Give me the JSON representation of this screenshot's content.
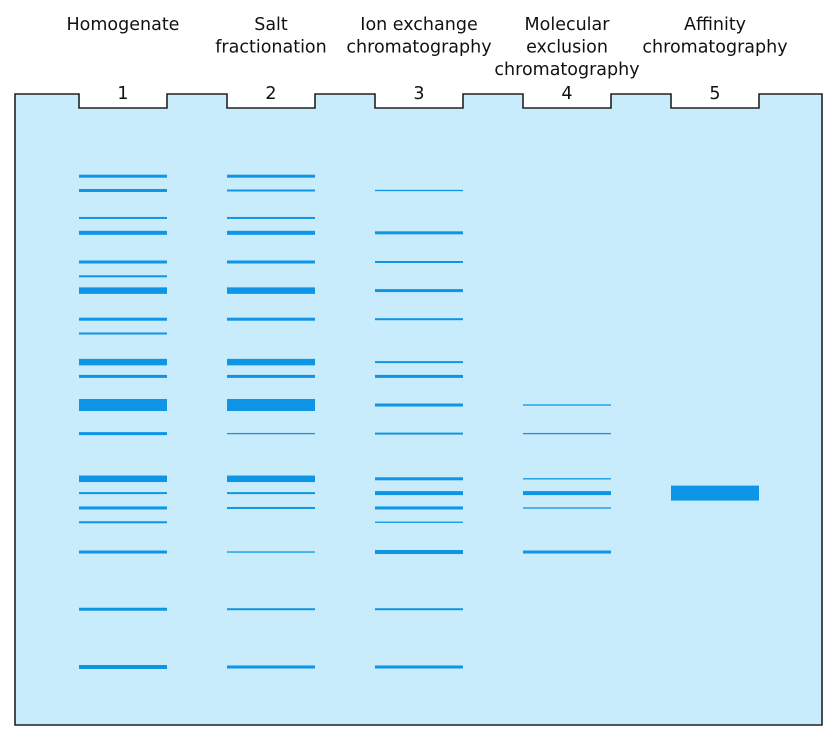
{
  "colors": {
    "gel": "#c8ecfb",
    "band": "#0f95e6",
    "outline": "#222222"
  },
  "lanes": [
    {
      "number": "1",
      "title_lines": [
        "Homogenate"
      ],
      "bands": [
        {
          "mobility": 0.072,
          "intensity": 2
        },
        {
          "mobility": 0.097,
          "intensity": 2
        },
        {
          "mobility": 0.145,
          "intensity": 1
        },
        {
          "mobility": 0.171,
          "intensity": 3
        },
        {
          "mobility": 0.222,
          "intensity": 2
        },
        {
          "mobility": 0.247,
          "intensity": 1
        },
        {
          "mobility": 0.272,
          "intensity": 4
        },
        {
          "mobility": 0.322,
          "intensity": 2
        },
        {
          "mobility": 0.347,
          "intensity": 1
        },
        {
          "mobility": 0.397,
          "intensity": 4
        },
        {
          "mobility": 0.422,
          "intensity": 2
        },
        {
          "mobility": 0.472,
          "intensity": 5
        },
        {
          "mobility": 0.522,
          "intensity": 2
        },
        {
          "mobility": 0.601,
          "intensity": 4
        },
        {
          "mobility": 0.626,
          "intensity": 1
        },
        {
          "mobility": 0.652,
          "intensity": 2
        },
        {
          "mobility": 0.677,
          "intensity": 1
        },
        {
          "mobility": 0.729,
          "intensity": 2
        },
        {
          "mobility": 0.829,
          "intensity": 2
        },
        {
          "mobility": 0.93,
          "intensity": 3
        }
      ]
    },
    {
      "number": "2",
      "title_lines": [
        "Salt",
        "fractionation"
      ],
      "bands": [
        {
          "mobility": 0.072,
          "intensity": 2
        },
        {
          "mobility": 0.097,
          "intensity": 1
        },
        {
          "mobility": 0.145,
          "intensity": 1
        },
        {
          "mobility": 0.171,
          "intensity": 3
        },
        {
          "mobility": 0.222,
          "intensity": 2
        },
        {
          "mobility": 0.272,
          "intensity": 4
        },
        {
          "mobility": 0.322,
          "intensity": 2
        },
        {
          "mobility": 0.397,
          "intensity": 4
        },
        {
          "mobility": 0.422,
          "intensity": 2
        },
        {
          "mobility": 0.472,
          "intensity": 5
        },
        {
          "mobility": 0.522,
          "intensity": 0
        },
        {
          "mobility": 0.601,
          "intensity": 4
        },
        {
          "mobility": 0.626,
          "intensity": 1
        },
        {
          "mobility": 0.652,
          "intensity": 1
        },
        {
          "mobility": 0.729,
          "intensity": 0
        },
        {
          "mobility": 0.829,
          "intensity": 1
        },
        {
          "mobility": 0.93,
          "intensity": 2
        }
      ]
    },
    {
      "number": "3",
      "title_lines": [
        "Ion exchange",
        "chromatography"
      ],
      "bands": [
        {
          "mobility": 0.097,
          "intensity": 0
        },
        {
          "mobility": 0.171,
          "intensity": 2
        },
        {
          "mobility": 0.222,
          "intensity": 1
        },
        {
          "mobility": 0.272,
          "intensity": 2
        },
        {
          "mobility": 0.322,
          "intensity": 1
        },
        {
          "mobility": 0.397,
          "intensity": 1
        },
        {
          "mobility": 0.422,
          "intensity": 2
        },
        {
          "mobility": 0.472,
          "intensity": 2
        },
        {
          "mobility": 0.522,
          "intensity": 1
        },
        {
          "mobility": 0.601,
          "intensity": 2
        },
        {
          "mobility": 0.626,
          "intensity": 3
        },
        {
          "mobility": 0.652,
          "intensity": 2
        },
        {
          "mobility": 0.677,
          "intensity": 0
        },
        {
          "mobility": 0.729,
          "intensity": 3
        },
        {
          "mobility": 0.829,
          "intensity": 1
        },
        {
          "mobility": 0.93,
          "intensity": 2
        }
      ]
    },
    {
      "number": "4",
      "title_lines": [
        "Molecular",
        "exclusion",
        "chromatography"
      ],
      "bands": [
        {
          "mobility": 0.472,
          "intensity": 0
        },
        {
          "mobility": 0.522,
          "intensity": 0
        },
        {
          "mobility": 0.601,
          "intensity": 0
        },
        {
          "mobility": 0.626,
          "intensity": 3
        },
        {
          "mobility": 0.652,
          "intensity": 0
        },
        {
          "mobility": 0.729,
          "intensity": 2
        }
      ]
    },
    {
      "number": "5",
      "title_lines": [
        "Affinity",
        "chromatography"
      ],
      "bands": [
        {
          "mobility": 0.626,
          "intensity": 6
        }
      ]
    }
  ]
}
